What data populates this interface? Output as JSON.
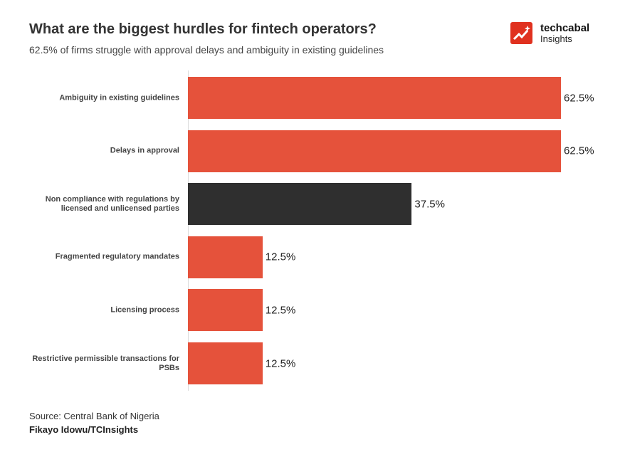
{
  "header": {
    "title": "What are the biggest hurdles for fintech operators?",
    "subtitle": "62.5% of firms struggle with approval delays and ambiguity in existing guidelines"
  },
  "logo": {
    "brand": "techcabal",
    "sub": "Insights",
    "color": "#e0311f"
  },
  "chart_data": {
    "type": "bar",
    "orientation": "horizontal",
    "categories": [
      "Ambiguity in existing guidelines",
      "Delays in approval",
      "Non compliance with regulations by licensed and unlicensed parties",
      "Fragmented regulatory mandates",
      "Licensing process",
      "Restrictive permissible transactions for PSBs"
    ],
    "values": [
      62.5,
      62.5,
      37.5,
      12.5,
      12.5,
      12.5
    ],
    "data_labels": [
      "62.5%",
      "62.5%",
      "37.5%",
      "12.5%",
      "12.5%",
      "12.5%"
    ],
    "colors": [
      "#e5523b",
      "#e5523b",
      "#2f2f2f",
      "#e5523b",
      "#e5523b",
      "#e5523b"
    ],
    "xlim": [
      0,
      62.5
    ],
    "grid": false,
    "legend": "none"
  },
  "footer": {
    "source": "Source: Central Bank of Nigeria",
    "author": "Fikayo Idowu/TCInsights"
  }
}
